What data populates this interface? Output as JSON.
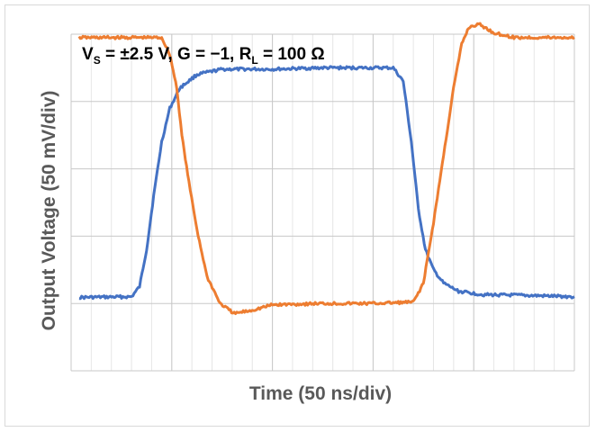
{
  "chart_data": {
    "type": "line",
    "title": "",
    "annotation": {
      "v": "V",
      "v_sub": "S",
      "mid": " = ±2.5 V, G = −1, R",
      "r_sub": "L",
      "end": " = 100 Ω"
    },
    "xlabel": "Time (50 ns/div)",
    "ylabel": "Output Voltage (50 mV/div)",
    "xlim": [
      0,
      5
    ],
    "ylim": [
      -2,
      3
    ],
    "x_divisions": 5,
    "y_divisions": 5,
    "minor_x_per_division": 5,
    "grid": true,
    "legend": "none",
    "series": [
      {
        "color": "#4472c4",
        "points": [
          [
            0.08,
            -0.91
          ],
          [
            0.6,
            -0.9
          ],
          [
            0.68,
            -0.75
          ],
          [
            0.75,
            -0.2
          ],
          [
            0.82,
            0.6
          ],
          [
            0.9,
            1.4
          ],
          [
            0.98,
            1.9
          ],
          [
            1.08,
            2.2
          ],
          [
            1.25,
            2.4
          ],
          [
            1.5,
            2.48
          ],
          [
            2.0,
            2.48
          ],
          [
            2.5,
            2.5
          ],
          [
            3.2,
            2.5
          ],
          [
            3.3,
            2.3
          ],
          [
            3.38,
            1.4
          ],
          [
            3.45,
            0.4
          ],
          [
            3.52,
            -0.2
          ],
          [
            3.6,
            -0.5
          ],
          [
            3.7,
            -0.7
          ],
          [
            3.85,
            -0.82
          ],
          [
            4.1,
            -0.87
          ],
          [
            4.5,
            -0.88
          ],
          [
            5.0,
            -0.9
          ]
        ]
      },
      {
        "color": "#ed7d31",
        "points": [
          [
            0.08,
            2.95
          ],
          [
            0.5,
            2.95
          ],
          [
            0.9,
            2.95
          ],
          [
            0.98,
            2.7
          ],
          [
            1.05,
            2.2
          ],
          [
            1.1,
            1.5
          ],
          [
            1.17,
            0.8
          ],
          [
            1.25,
            0.1
          ],
          [
            1.35,
            -0.6
          ],
          [
            1.48,
            -1.0
          ],
          [
            1.62,
            -1.15
          ],
          [
            1.8,
            -1.1
          ],
          [
            2.0,
            -1.02
          ],
          [
            2.5,
            -1.0
          ],
          [
            3.0,
            -1.0
          ],
          [
            3.4,
            -0.98
          ],
          [
            3.5,
            -0.7
          ],
          [
            3.6,
            0.2
          ],
          [
            3.7,
            1.2
          ],
          [
            3.8,
            2.2
          ],
          [
            3.88,
            2.85
          ],
          [
            3.95,
            3.1
          ],
          [
            4.05,
            3.15
          ],
          [
            4.2,
            3.02
          ],
          [
            4.4,
            2.95
          ],
          [
            5.0,
            2.95
          ]
        ]
      }
    ]
  }
}
